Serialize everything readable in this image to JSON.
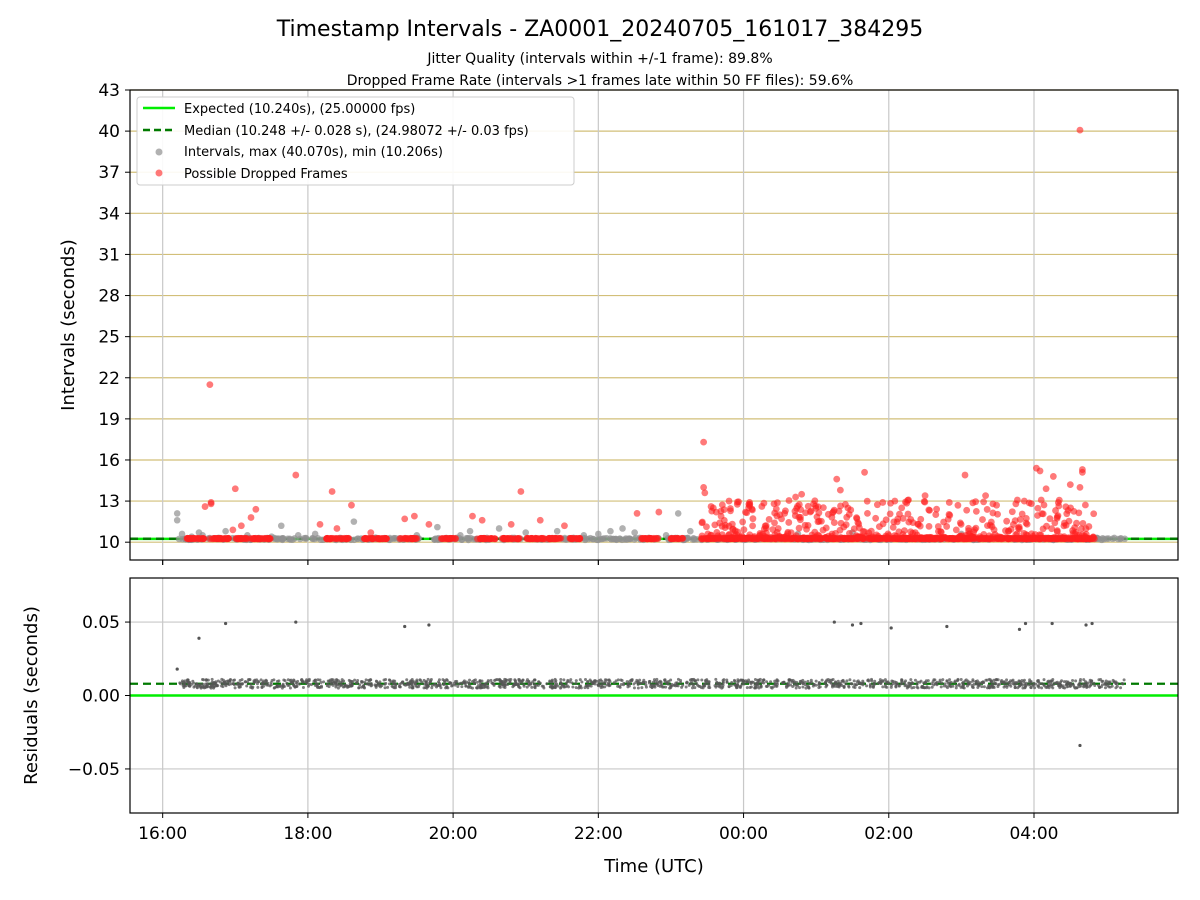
{
  "chart_data": [
    {
      "type": "scatter",
      "title": "Timestamp Intervals - ZA0001_20240705_161017_384295",
      "subtitle_lines": [
        "Jitter Quality (intervals within +/-1 frame): 89.8%",
        "Dropped Frame Rate (intervals >1 frames late within 50 FF files): 59.6%"
      ],
      "ylabel": "Intervals (seconds)",
      "xlim": [
        "2024-07-05T15:33",
        "2024-07-06T05:59"
      ],
      "ylim": [
        8.7,
        43
      ],
      "yticks": [
        10,
        13,
        16,
        19,
        22,
        25,
        28,
        31,
        34,
        37,
        40,
        43
      ],
      "xticks": [
        {
          "t": "2024-07-05T16:00",
          "label": "16:00"
        },
        {
          "t": "2024-07-05T18:00",
          "label": "18:00"
        },
        {
          "t": "2024-07-05T20:00",
          "label": "20:00"
        },
        {
          "t": "2024-07-05T22:00",
          "label": "22:00"
        },
        {
          "t": "2024-07-06T00:00",
          "label": "00:00"
        },
        {
          "t": "2024-07-06T02:00",
          "label": "02:00"
        },
        {
          "t": "2024-07-06T04:00",
          "label": "04:00"
        }
      ],
      "grid": "on",
      "legend_position": "top-left",
      "expected_interval": 10.24,
      "median_interval": 10.248,
      "series": [
        {
          "name": "Expected (10.240s), (25.00000 fps)",
          "kind": "hline",
          "y": 10.24,
          "color": "#00ee00"
        },
        {
          "name": "Median (10.248 +/- 0.028 s), (24.98072 +/- 0.03 fps)",
          "kind": "hline-dashed",
          "y": 10.248,
          "color": "#007a00"
        },
        {
          "name": "Intervals, max (40.070s), min (10.206s)",
          "kind": "scatter",
          "color": "#909090",
          "points": [
            [
              "2024-07-05T16:12",
              11.6
            ],
            [
              "2024-07-05T16:12",
              12.1
            ],
            [
              "2024-07-05T16:16",
              10.6
            ],
            [
              "2024-07-05T16:24",
              10.4
            ],
            [
              "2024-07-05T16:30",
              10.7
            ],
            [
              "2024-07-05T16:33",
              10.5
            ],
            [
              "2024-07-05T16:52",
              10.8
            ],
            [
              "2024-07-05T17:10",
              10.5
            ],
            [
              "2024-07-05T17:30",
              10.4
            ],
            [
              "2024-07-05T17:38",
              11.2
            ],
            [
              "2024-07-05T17:52",
              10.5
            ],
            [
              "2024-07-05T18:06",
              10.6
            ],
            [
              "2024-07-05T18:38",
              11.5
            ],
            [
              "2024-07-05T19:30",
              10.5
            ],
            [
              "2024-07-05T19:47",
              11.1
            ],
            [
              "2024-07-05T20:06",
              10.5
            ],
            [
              "2024-07-05T20:14",
              10.8
            ],
            [
              "2024-07-05T20:38",
              11.0
            ],
            [
              "2024-07-05T21:00",
              10.7
            ],
            [
              "2024-07-05T21:26",
              10.8
            ],
            [
              "2024-07-05T21:48",
              10.5
            ],
            [
              "2024-07-05T22:00",
              10.6
            ],
            [
              "2024-07-05T22:10",
              10.8
            ],
            [
              "2024-07-05T22:20",
              11.0
            ],
            [
              "2024-07-05T22:30",
              10.7
            ],
            [
              "2024-07-05T22:56",
              10.5
            ],
            [
              "2024-07-05T23:06",
              12.1
            ],
            [
              "2024-07-05T23:16",
              10.8
            ],
            [
              "2024-07-06T00:45",
              10.6
            ],
            [
              "2024-07-06T01:30",
              10.7
            ],
            [
              "2024-07-06T03:00",
              10.6
            ],
            [
              "2024-07-06T04:52",
              10.3
            ],
            [
              "2024-07-06T05:05",
              10.25
            ],
            [
              "2024-07-06T05:15",
              10.25
            ]
          ]
        },
        {
          "name": "Possible Dropped Frames",
          "kind": "scatter",
          "color": "#ff2020",
          "points": [
            [
              "2024-07-05T16:39",
              21.5
            ],
            [
              "2024-07-05T16:40",
              12.9
            ],
            [
              "2024-07-05T16:35",
              12.6
            ],
            [
              "2024-07-05T16:40",
              12.8
            ],
            [
              "2024-07-05T16:58",
              10.9
            ],
            [
              "2024-07-05T17:00",
              13.9
            ],
            [
              "2024-07-05T17:05",
              11.2
            ],
            [
              "2024-07-05T17:13",
              11.8
            ],
            [
              "2024-07-05T17:17",
              12.4
            ],
            [
              "2024-07-05T17:50",
              14.9
            ],
            [
              "2024-07-05T18:10",
              11.3
            ],
            [
              "2024-07-05T18:20",
              13.7
            ],
            [
              "2024-07-05T18:24",
              11.0
            ],
            [
              "2024-07-05T18:36",
              12.7
            ],
            [
              "2024-07-05T18:52",
              10.7
            ],
            [
              "2024-07-05T19:20",
              11.7
            ],
            [
              "2024-07-05T19:28",
              11.9
            ],
            [
              "2024-07-05T19:40",
              11.3
            ],
            [
              "2024-07-05T20:16",
              11.9
            ],
            [
              "2024-07-05T20:24",
              11.6
            ],
            [
              "2024-07-05T20:48",
              11.3
            ],
            [
              "2024-07-05T20:56",
              13.7
            ],
            [
              "2024-07-05T21:12",
              11.6
            ],
            [
              "2024-07-05T21:32",
              11.2
            ],
            [
              "2024-07-05T22:32",
              12.1
            ],
            [
              "2024-07-05T22:50",
              12.2
            ],
            [
              "2024-07-05T23:27",
              17.3
            ],
            [
              "2024-07-05T23:27",
              14.0
            ],
            [
              "2024-07-05T23:28",
              13.6
            ],
            [
              "2024-07-05T23:35",
              12.5
            ],
            [
              "2024-07-05T23:48",
              13.0
            ],
            [
              "2024-07-06T00:05",
              12.9
            ],
            [
              "2024-07-06T00:30",
              12.0
            ],
            [
              "2024-07-06T00:43",
              13.3
            ],
            [
              "2024-07-06T00:48",
              13.5
            ],
            [
              "2024-07-06T01:17",
              14.6
            ],
            [
              "2024-07-06T01:20",
              13.8
            ],
            [
              "2024-07-06T01:40",
              15.1
            ],
            [
              "2024-07-06T01:55",
              12.9
            ],
            [
              "2024-07-06T02:05",
              13.0
            ],
            [
              "2024-07-06T02:30",
              13.4
            ],
            [
              "2024-07-06T02:50",
              12.9
            ],
            [
              "2024-07-06T03:03",
              14.9
            ],
            [
              "2024-07-06T03:20",
              13.4
            ],
            [
              "2024-07-06T03:45",
              12.8
            ],
            [
              "2024-07-06T03:52",
              13.0
            ],
            [
              "2024-07-06T04:02",
              15.4
            ],
            [
              "2024-07-06T04:05",
              15.2
            ],
            [
              "2024-07-06T04:10",
              13.9
            ],
            [
              "2024-07-06T04:16",
              14.8
            ],
            [
              "2024-07-06T04:30",
              14.2
            ],
            [
              "2024-07-06T04:38",
              14.0
            ],
            [
              "2024-07-06T04:40",
              15.3
            ],
            [
              "2024-07-06T04:40",
              15.1
            ],
            [
              "2024-07-06T04:38",
              40.07
            ]
          ],
          "dense_bands": [
            {
              "t0": "2024-07-05T16:20",
              "t1": "2024-07-05T16:35",
              "y": 10.24
            },
            {
              "t0": "2024-07-05T16:38",
              "t1": "2024-07-05T16:55",
              "y": 10.24
            },
            {
              "t0": "2024-07-05T17:00",
              "t1": "2024-07-05T17:30",
              "y": 10.24
            },
            {
              "t0": "2024-07-05T18:15",
              "t1": "2024-07-05T18:35",
              "y": 10.24
            },
            {
              "t0": "2024-07-05T18:45",
              "t1": "2024-07-05T19:05",
              "y": 10.24
            },
            {
              "t0": "2024-07-05T19:15",
              "t1": "2024-07-05T19:30",
              "y": 10.24
            },
            {
              "t0": "2024-07-05T19:50",
              "t1": "2024-07-05T20:02",
              "y": 10.24
            },
            {
              "t0": "2024-07-05T20:20",
              "t1": "2024-07-05T20:35",
              "y": 10.24
            },
            {
              "t0": "2024-07-05T20:40",
              "t1": "2024-07-05T20:55",
              "y": 10.24
            },
            {
              "t0": "2024-07-05T21:00",
              "t1": "2024-07-05T21:30",
              "y": 10.24
            },
            {
              "t0": "2024-07-05T21:35",
              "t1": "2024-07-05T21:45",
              "y": 10.24
            },
            {
              "t0": "2024-07-05T22:35",
              "t1": "2024-07-05T22:50",
              "y": 10.24
            },
            {
              "t0": "2024-07-05T23:00",
              "t1": "2024-07-05T23:10",
              "y": 10.24
            },
            {
              "t0": "2024-07-05T23:25",
              "t1": "2024-07-06T04:50",
              "y": 10.24
            }
          ]
        }
      ]
    },
    {
      "type": "scatter",
      "ylabel": "Residuals (seconds)",
      "xlabel": "Time (UTC)",
      "xlim": [
        "2024-07-05T15:33",
        "2024-07-06T05:59"
      ],
      "ylim": [
        -0.08,
        0.08
      ],
      "yticks": [
        {
          "v": 0.05,
          "label": "0.05"
        },
        {
          "v": 0.0,
          "label": "0.00"
        },
        {
          "v": -0.05,
          "label": "−0.05"
        }
      ],
      "grid": "on",
      "series": [
        {
          "kind": "hline",
          "y": 0.0,
          "color": "#00ee00"
        },
        {
          "kind": "hline-dashed",
          "y": 0.008,
          "color": "#007a00"
        },
        {
          "kind": "scatter",
          "color": "#555555",
          "points": [
            [
              "2024-07-05T16:12",
              0.018
            ],
            [
              "2024-07-05T16:30",
              0.039
            ],
            [
              "2024-07-05T16:52",
              0.049
            ],
            [
              "2024-07-05T17:50",
              0.05
            ],
            [
              "2024-07-05T19:20",
              0.047
            ],
            [
              "2024-07-05T19:40",
              0.048
            ],
            [
              "2024-07-06T01:15",
              0.05
            ],
            [
              "2024-07-06T01:30",
              0.048
            ],
            [
              "2024-07-06T01:37",
              0.049
            ],
            [
              "2024-07-06T02:02",
              0.046
            ],
            [
              "2024-07-06T02:48",
              0.047
            ],
            [
              "2024-07-06T03:48",
              0.045
            ],
            [
              "2024-07-06T03:53",
              0.049
            ],
            [
              "2024-07-06T04:15",
              0.049
            ],
            [
              "2024-07-06T04:43",
              0.048
            ],
            [
              "2024-07-06T04:48",
              0.049
            ],
            [
              "2024-07-06T04:38",
              -0.034
            ]
          ],
          "dense_band": {
            "t0": "2024-07-05T16:14",
            "t1": "2024-07-06T05:15",
            "y_center": 0.008,
            "y_spread": 0.003
          }
        }
      ]
    }
  ]
}
